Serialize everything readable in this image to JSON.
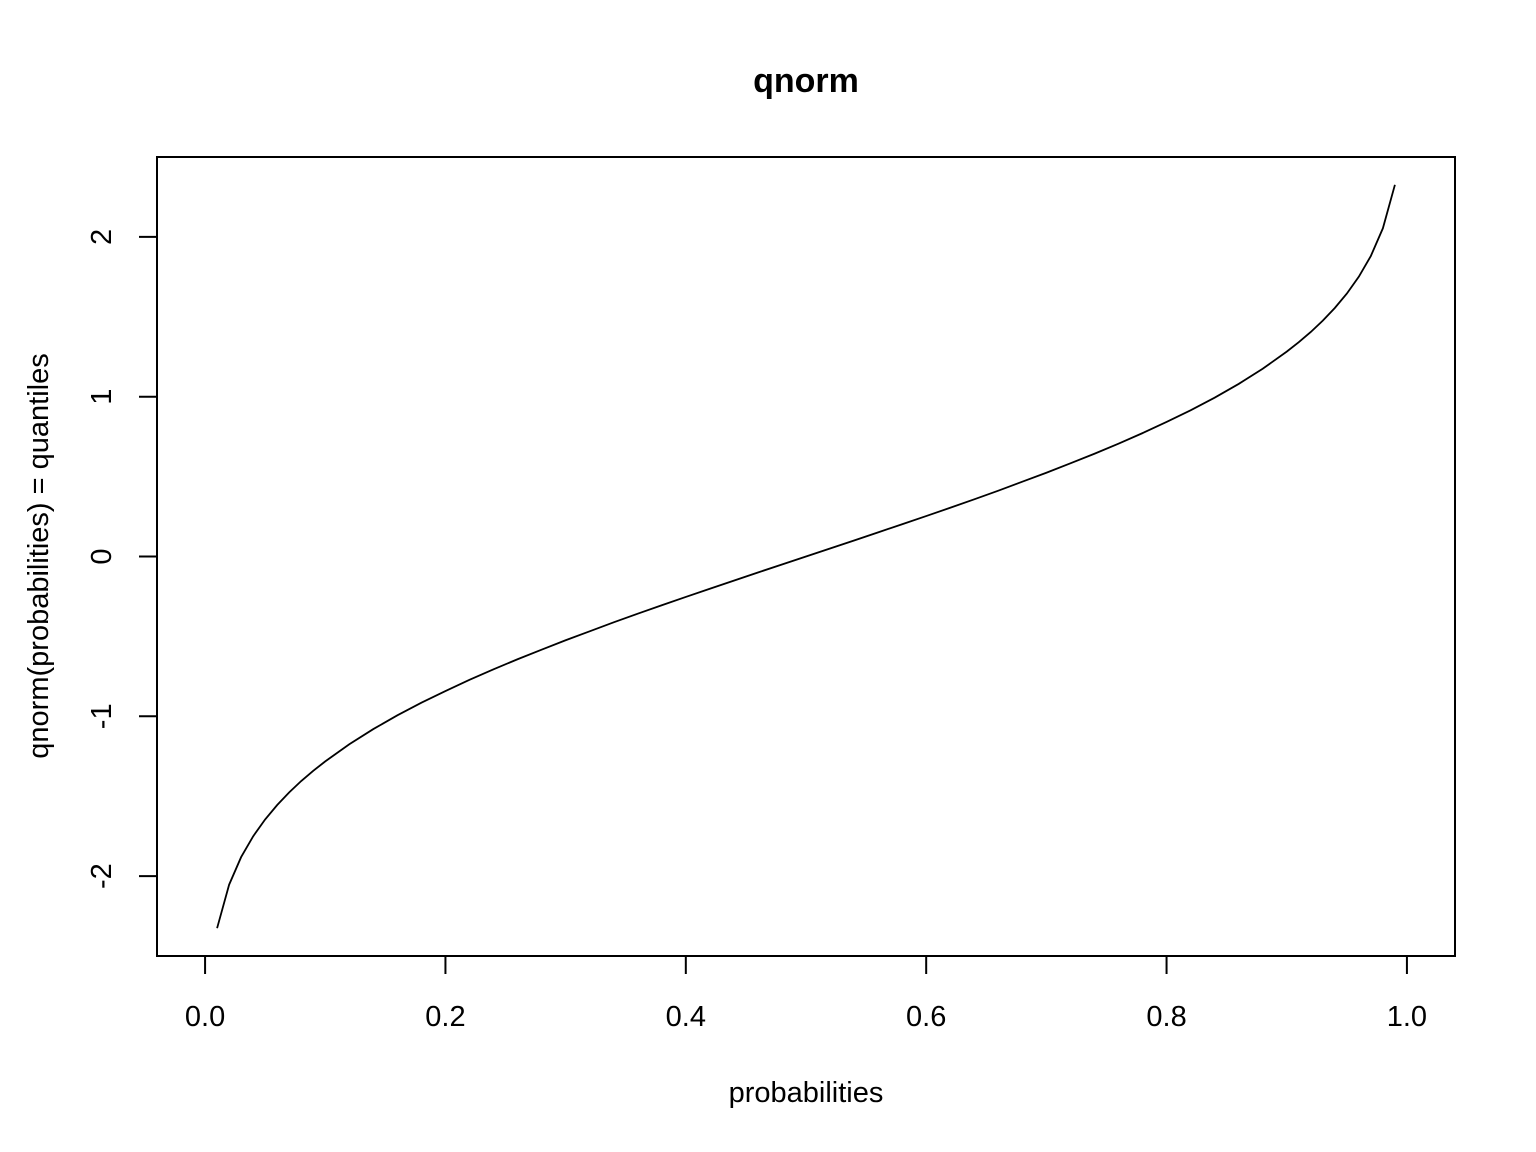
{
  "chart_data": {
    "type": "line",
    "title": "qnorm",
    "xlabel": "probabilities",
    "ylabel": "qnorm(probabilities) = quantiles",
    "xlim": [
      -0.04,
      1.04
    ],
    "ylim": [
      -2.5,
      2.5
    ],
    "x_ticks": [
      0.0,
      0.2,
      0.4,
      0.6,
      0.8,
      1.0
    ],
    "x_tick_labels": [
      "0.0",
      "0.2",
      "0.4",
      "0.6",
      "0.8",
      "1.0"
    ],
    "y_ticks": [
      -2,
      -1,
      0,
      1,
      2
    ],
    "y_tick_labels": [
      "-2",
      "-1",
      "0",
      "1",
      "2"
    ],
    "grid": false,
    "legend": "none",
    "line_color": "#000000",
    "series": [
      {
        "x": [
          0.01,
          0.02,
          0.03,
          0.04,
          0.05,
          0.06,
          0.07,
          0.08,
          0.09,
          0.1,
          0.12,
          0.14,
          0.16,
          0.18,
          0.2,
          0.22,
          0.24,
          0.26,
          0.28,
          0.3,
          0.32,
          0.34,
          0.36,
          0.38,
          0.4,
          0.42,
          0.44,
          0.46,
          0.48,
          0.5,
          0.52,
          0.54,
          0.56,
          0.58,
          0.6,
          0.62,
          0.64,
          0.66,
          0.68,
          0.7,
          0.72,
          0.74,
          0.76,
          0.78,
          0.8,
          0.82,
          0.84,
          0.86,
          0.88,
          0.9,
          0.91,
          0.92,
          0.93,
          0.94,
          0.95,
          0.96,
          0.97,
          0.98,
          0.99
        ],
        "y": [
          -2.326,
          -2.054,
          -1.881,
          -1.751,
          -1.645,
          -1.555,
          -1.476,
          -1.405,
          -1.341,
          -1.282,
          -1.175,
          -1.08,
          -0.994,
          -0.915,
          -0.842,
          -0.772,
          -0.706,
          -0.643,
          -0.583,
          -0.524,
          -0.468,
          -0.412,
          -0.358,
          -0.305,
          -0.253,
          -0.202,
          -0.151,
          -0.1,
          -0.05,
          0.0,
          0.05,
          0.1,
          0.151,
          0.202,
          0.253,
          0.305,
          0.358,
          0.412,
          0.468,
          0.524,
          0.583,
          0.643,
          0.706,
          0.772,
          0.842,
          0.915,
          0.994,
          1.08,
          1.175,
          1.282,
          1.341,
          1.405,
          1.476,
          1.555,
          1.645,
          1.751,
          1.881,
          2.054,
          2.326
        ]
      }
    ]
  }
}
